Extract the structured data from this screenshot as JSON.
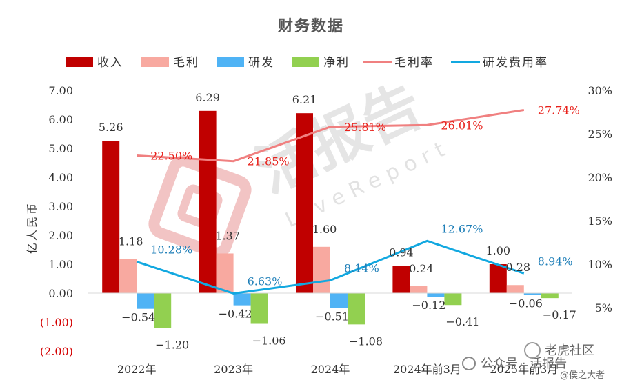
{
  "chart_data": {
    "type": "bar",
    "title": "财务数据",
    "ylabel": "亿人民币",
    "categories": [
      "2022年",
      "2023年",
      "2024年",
      "2024年前3月",
      "2025年前3月"
    ],
    "ylim": [
      -2,
      7
    ],
    "y2lim": [
      0.05,
      0.3
    ],
    "yticks": [
      "7.00",
      "6.00",
      "5.00",
      "4.00",
      "3.00",
      "2.00",
      "1.00",
      "0.00",
      "(1.00)",
      "(2.00)"
    ],
    "y2ticks": [
      "30%",
      "25%",
      "20%",
      "15%",
      "10%",
      "5%"
    ],
    "legend_position": "top",
    "series": [
      {
        "name": "收入",
        "kind": "bar",
        "color": "#c00000",
        "values": [
          5.26,
          6.29,
          6.21,
          0.94,
          1.0
        ],
        "labels": [
          "5.26",
          "6.29",
          "6.21",
          "0.94",
          "1.00"
        ]
      },
      {
        "name": "毛利",
        "kind": "bar",
        "color": "#f8a9a0",
        "values": [
          1.18,
          1.37,
          1.6,
          0.24,
          0.28
        ],
        "labels": [
          "1.18",
          "1.37",
          "1.60",
          "0.24",
          "0.28"
        ]
      },
      {
        "name": "研发",
        "kind": "bar",
        "color": "#4fb3f5",
        "values": [
          -0.54,
          -0.42,
          -0.51,
          -0.12,
          -0.06
        ],
        "labels": [
          "−0.54",
          "−0.42",
          "−0.51",
          "−0.12",
          "−0.06"
        ]
      },
      {
        "name": "净利",
        "kind": "bar",
        "color": "#92d050",
        "values": [
          -1.2,
          -1.06,
          -1.08,
          -0.41,
          -0.17
        ],
        "labels": [
          "−1.20",
          "−1.06",
          "−1.08",
          "−0.41",
          "−0.17"
        ]
      },
      {
        "name": "毛利率",
        "kind": "line",
        "axis": "right",
        "color": "#f08080",
        "values": [
          0.225,
          0.2185,
          0.2581,
          0.2601,
          0.2774
        ],
        "labels": [
          "22.50%",
          "21.85%",
          "25.81%",
          "26.01%",
          "27.74%"
        ]
      },
      {
        "name": "研发费用率",
        "kind": "line",
        "axis": "right",
        "color": "#12a8e0",
        "values": [
          0.1028,
          0.0663,
          0.0814,
          0.1267,
          0.0894
        ],
        "labels": [
          "10.28%",
          "6.63%",
          "8.14%",
          "12.67%",
          "8.94%"
        ]
      }
    ]
  },
  "watermark": {
    "main": "活报告",
    "sub": "LiveReport",
    "corner_account": "公众号 · 活报告",
    "corner_brand": "老虎社区",
    "corner_user": "@侯之大者"
  }
}
